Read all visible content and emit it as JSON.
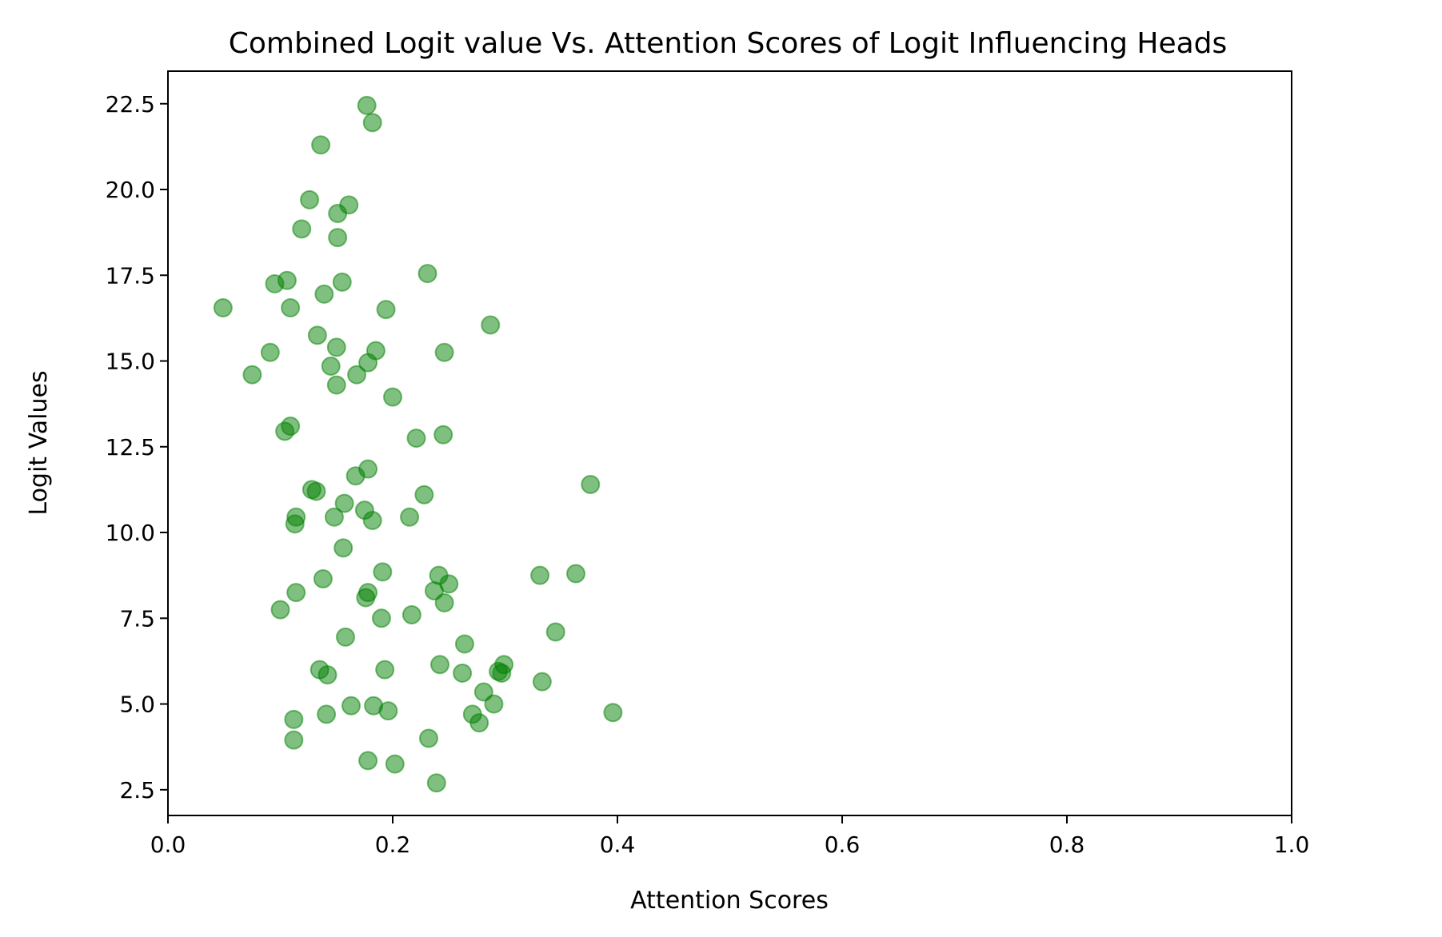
{
  "chart_data": {
    "type": "scatter",
    "title": "Combined Logit value Vs. Attention Scores of Logit Influencing Heads",
    "xlabel": "Attention Scores",
    "ylabel": "Logit Values",
    "xlim": [
      0.0,
      1.0
    ],
    "ylim": [
      1.75,
      23.45
    ],
    "x_ticks": [
      0.0,
      0.2,
      0.4,
      0.6,
      0.8,
      1.0
    ],
    "x_tick_labels": [
      "0.0",
      "0.2",
      "0.4",
      "0.6",
      "0.8",
      "1.0"
    ],
    "y_ticks": [
      2.5,
      5.0,
      7.5,
      10.0,
      12.5,
      15.0,
      17.5,
      20.0,
      22.5
    ],
    "y_tick_labels": [
      "2.5",
      "5.0",
      "7.5",
      "10.0",
      "12.5",
      "15.0",
      "17.5",
      "20.0",
      "22.5"
    ],
    "grid": false,
    "marker_color": "#008000",
    "marker_alpha": 0.5,
    "series": [
      {
        "points": [
          [
            0.177,
            22.45
          ],
          [
            0.182,
            21.95
          ],
          [
            0.136,
            21.3
          ],
          [
            0.126,
            19.7
          ],
          [
            0.161,
            19.55
          ],
          [
            0.151,
            19.3
          ],
          [
            0.119,
            18.85
          ],
          [
            0.151,
            18.6
          ],
          [
            0.231,
            17.55
          ],
          [
            0.106,
            17.35
          ],
          [
            0.095,
            17.25
          ],
          [
            0.155,
            17.3
          ],
          [
            0.139,
            16.95
          ],
          [
            0.049,
            16.55
          ],
          [
            0.109,
            16.55
          ],
          [
            0.194,
            16.5
          ],
          [
            0.287,
            16.05
          ],
          [
            0.133,
            15.75
          ],
          [
            0.15,
            15.4
          ],
          [
            0.091,
            15.25
          ],
          [
            0.185,
            15.3
          ],
          [
            0.246,
            15.25
          ],
          [
            0.178,
            14.95
          ],
          [
            0.145,
            14.85
          ],
          [
            0.075,
            14.6
          ],
          [
            0.168,
            14.6
          ],
          [
            0.15,
            14.3
          ],
          [
            0.2,
            13.95
          ],
          [
            0.109,
            13.1
          ],
          [
            0.104,
            12.95
          ],
          [
            0.221,
            12.75
          ],
          [
            0.245,
            12.85
          ],
          [
            0.178,
            11.85
          ],
          [
            0.167,
            11.65
          ],
          [
            0.376,
            11.4
          ],
          [
            0.128,
            11.25
          ],
          [
            0.132,
            11.2
          ],
          [
            0.228,
            11.1
          ],
          [
            0.157,
            10.85
          ],
          [
            0.175,
            10.65
          ],
          [
            0.114,
            10.45
          ],
          [
            0.148,
            10.45
          ],
          [
            0.215,
            10.45
          ],
          [
            0.182,
            10.35
          ],
          [
            0.113,
            10.25
          ],
          [
            0.156,
            9.55
          ],
          [
            0.191,
            8.85
          ],
          [
            0.331,
            8.75
          ],
          [
            0.363,
            8.8
          ],
          [
            0.241,
            8.75
          ],
          [
            0.138,
            8.65
          ],
          [
            0.25,
            8.5
          ],
          [
            0.237,
            8.3
          ],
          [
            0.114,
            8.25
          ],
          [
            0.178,
            8.25
          ],
          [
            0.176,
            8.1
          ],
          [
            0.246,
            7.95
          ],
          [
            0.1,
            7.75
          ],
          [
            0.217,
            7.6
          ],
          [
            0.19,
            7.5
          ],
          [
            0.345,
            7.1
          ],
          [
            0.158,
            6.95
          ],
          [
            0.264,
            6.75
          ],
          [
            0.242,
            6.15
          ],
          [
            0.299,
            6.15
          ],
          [
            0.135,
            6.0
          ],
          [
            0.193,
            6.0
          ],
          [
            0.142,
            5.85
          ],
          [
            0.262,
            5.9
          ],
          [
            0.294,
            5.95
          ],
          [
            0.297,
            5.9
          ],
          [
            0.333,
            5.65
          ],
          [
            0.281,
            5.35
          ],
          [
            0.163,
            4.95
          ],
          [
            0.183,
            4.95
          ],
          [
            0.29,
            5.0
          ],
          [
            0.196,
            4.8
          ],
          [
            0.141,
            4.7
          ],
          [
            0.271,
            4.7
          ],
          [
            0.396,
            4.75
          ],
          [
            0.112,
            4.55
          ],
          [
            0.277,
            4.45
          ],
          [
            0.232,
            4.0
          ],
          [
            0.112,
            3.95
          ],
          [
            0.178,
            3.35
          ],
          [
            0.202,
            3.25
          ],
          [
            0.239,
            2.7
          ]
        ]
      }
    ]
  }
}
